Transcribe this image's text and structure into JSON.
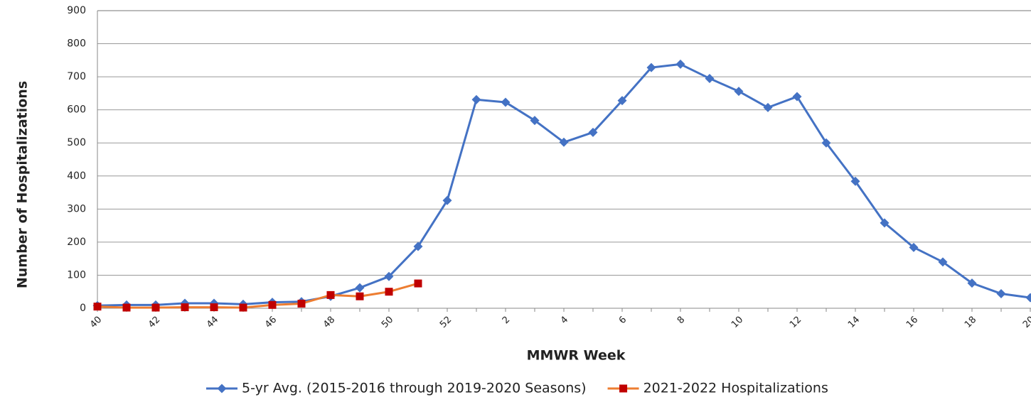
{
  "chart_data": {
    "type": "line",
    "x_label": "MMWR Week",
    "y_label": "Number of Hospitalizations",
    "categories": [
      "40",
      null,
      "42",
      null,
      "44",
      null,
      "46",
      null,
      "48",
      null,
      "50",
      null,
      "52",
      null,
      "2",
      null,
      "4",
      null,
      "6",
      null,
      "8",
      null,
      "10",
      null,
      "12",
      null,
      "14",
      null,
      "16",
      null,
      "18",
      null,
      "20"
    ],
    "series": [
      {
        "name": "5-yr Avg. (2015-2016 through 2019-2020 Seasons)",
        "color": "#4472c4",
        "marker": "diamond",
        "marker_color": "#4472c4",
        "values": [
          8,
          10,
          10,
          15,
          15,
          12,
          18,
          20,
          36,
          62,
          96,
          187,
          326,
          631,
          623,
          568,
          502,
          532,
          628,
          728,
          738,
          695,
          656,
          607,
          640,
          500,
          384,
          258,
          184,
          140,
          76,
          44,
          32
        ]
      },
      {
        "name": "2021-2022 Hospitalizations",
        "color": "#ed7d31",
        "marker": "square",
        "marker_color": "#c00000",
        "values": [
          5,
          2,
          2,
          3,
          3,
          2,
          10,
          14,
          40,
          36,
          50,
          75,
          null,
          null,
          null,
          null,
          null,
          null,
          null,
          null,
          null,
          null,
          null,
          null,
          null,
          null,
          null,
          null,
          null,
          null,
          null,
          null,
          null
        ]
      }
    ],
    "ylim": [
      0,
      900
    ],
    "yticks": [
      0,
      100,
      200,
      300,
      400,
      500,
      600,
      700,
      800,
      900
    ],
    "grid": true
  }
}
